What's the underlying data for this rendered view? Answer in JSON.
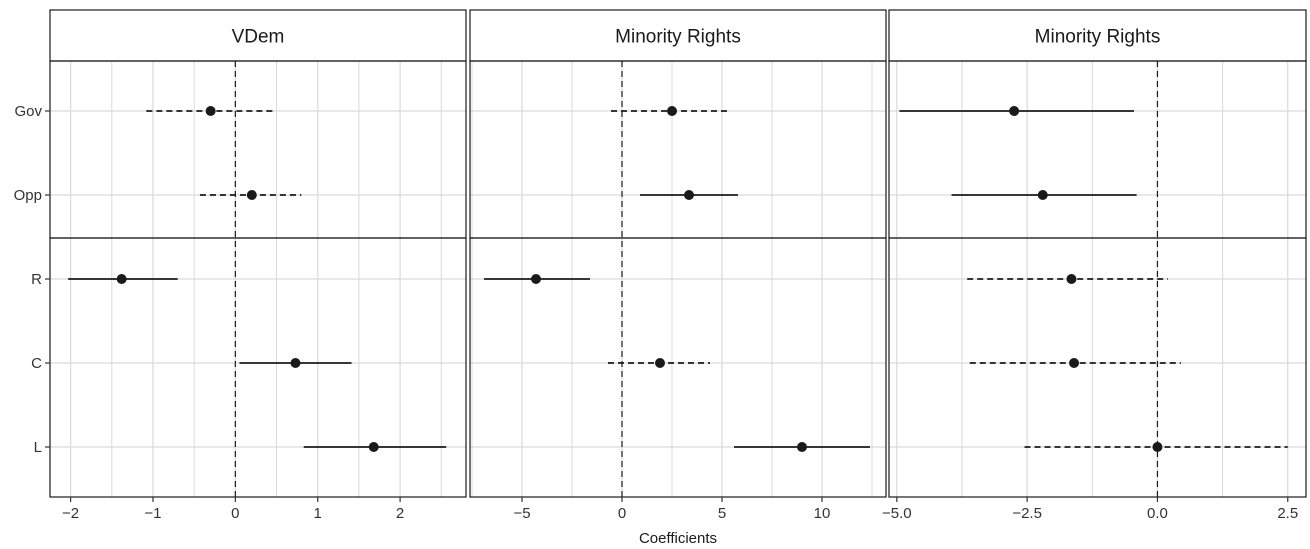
{
  "chart_data": {
    "type": "scatter",
    "subtype": "coefficient-plot",
    "xlabel": "Coefficients",
    "ylabel": "",
    "row_groups": [
      [
        "Gov",
        "Opp"
      ],
      [
        "R",
        "C",
        "L"
      ]
    ],
    "panels": [
      {
        "title": "VDem",
        "xlim": [
          -2.25,
          2.8
        ],
        "xticks": [
          -2,
          -1,
          0,
          1,
          2
        ],
        "xtick_labels": [
          "−2",
          "−1",
          "0",
          "1",
          "2"
        ],
        "points": [
          {
            "term": "Gov",
            "estimate": -0.3,
            "low": -1.08,
            "high": 0.48,
            "significant": false
          },
          {
            "term": "Opp",
            "estimate": 0.2,
            "low": -0.43,
            "high": 0.8,
            "significant": false
          },
          {
            "term": "R",
            "estimate": -1.38,
            "low": -2.03,
            "high": -0.7,
            "significant": true
          },
          {
            "term": "C",
            "estimate": 0.73,
            "low": 0.05,
            "high": 1.41,
            "significant": true
          },
          {
            "term": "L",
            "estimate": 1.68,
            "low": 0.83,
            "high": 2.56,
            "significant": true
          }
        ]
      },
      {
        "title": "Minority Rights",
        "xlim": [
          -7.6,
          13.2
        ],
        "xticks": [
          -5,
          0,
          5,
          10
        ],
        "xtick_labels": [
          "−5",
          "0",
          "5",
          "10"
        ],
        "points": [
          {
            "term": "Gov",
            "estimate": 2.5,
            "low": -0.55,
            "high": 5.35,
            "significant": false
          },
          {
            "term": "Opp",
            "estimate": 3.35,
            "low": 0.9,
            "high": 5.8,
            "significant": true
          },
          {
            "term": "R",
            "estimate": -4.3,
            "low": -6.9,
            "high": -1.6,
            "significant": true
          },
          {
            "term": "C",
            "estimate": 1.9,
            "low": -0.7,
            "high": 4.4,
            "significant": false
          },
          {
            "term": "L",
            "estimate": 9.0,
            "low": 5.6,
            "high": 12.4,
            "significant": true
          }
        ]
      },
      {
        "title": "Minority Rights",
        "xlim": [
          -5.15,
          2.85
        ],
        "xticks": [
          -5.0,
          -2.5,
          0.0,
          2.5
        ],
        "xtick_labels": [
          "−5.0",
          "−2.5",
          "0.0",
          "2.5"
        ],
        "points": [
          {
            "term": "Gov",
            "estimate": -2.75,
            "low": -4.95,
            "high": -0.45,
            "significant": true
          },
          {
            "term": "Opp",
            "estimate": -2.2,
            "low": -3.95,
            "high": -0.4,
            "significant": true
          },
          {
            "term": "R",
            "estimate": -1.65,
            "low": -3.65,
            "high": 0.2,
            "significant": false
          },
          {
            "term": "C",
            "estimate": -1.6,
            "low": -3.6,
            "high": 0.45,
            "significant": false
          },
          {
            "term": "L",
            "estimate": 0.0,
            "low": -2.55,
            "high": 2.5,
            "significant": false
          }
        ]
      }
    ],
    "grid": true,
    "reference_line": 0,
    "colors": {
      "point": "#1a1a1a",
      "grid": "#d9d9d9",
      "frame": "#1a1a1a",
      "strip_fill": "#ffffff"
    }
  }
}
